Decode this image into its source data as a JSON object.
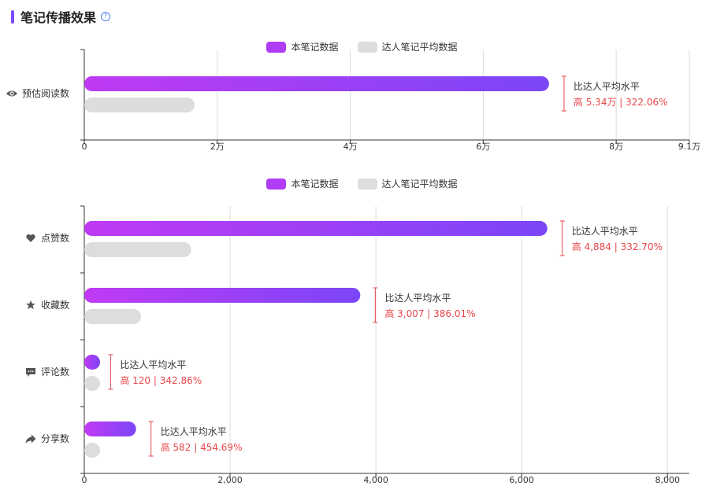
{
  "section": {
    "title": "笔记传播效果",
    "help_icon": "question-circle-icon"
  },
  "legend_labels": {
    "note": "本笔记数据",
    "avg": "达人笔记平均数据"
  },
  "colors": {
    "note_start": "#c03af5",
    "note_end": "#7b46f6",
    "avg": "#dddddd",
    "accent": "#7c4dff",
    "annotation": "#e8464a"
  },
  "chart_data": [
    {
      "type": "bar",
      "orientation": "horizontal",
      "series": [
        {
          "name": "本笔记数据",
          "values": [
            69900
          ]
        },
        {
          "name": "达人笔记平均数据",
          "values": [
            16600
          ]
        }
      ],
      "categories": [
        "预估阅读数"
      ],
      "category_icons": [
        "eye-icon"
      ],
      "xlim": [
        0,
        91000
      ],
      "ticks": [
        0,
        20000,
        40000,
        60000,
        80000,
        91000
      ],
      "tick_labels": [
        "0",
        "2万",
        "4万",
        "6万",
        "8万",
        "9.1万"
      ],
      "grid": true,
      "legend": "top-center",
      "annotations": [
        {
          "title": "比达人平均水平",
          "value": "高 5.34万 | 322.06%"
        }
      ]
    },
    {
      "type": "bar",
      "orientation": "horizontal",
      "series": [
        {
          "name": "本笔记数据",
          "values": [
            6352,
            3786,
            155,
            710
          ]
        },
        {
          "name": "达人笔记平均数据",
          "values": [
            1468,
            779,
            35,
            128
          ]
        }
      ],
      "categories": [
        "点赞数",
        "收藏数",
        "评论数",
        "分享数"
      ],
      "category_icons": [
        "heart-icon",
        "star-icon",
        "comment-icon",
        "share-icon"
      ],
      "xlim": [
        0,
        8300
      ],
      "ticks": [
        0,
        2000,
        4000,
        6000,
        8000
      ],
      "tick_labels": [
        "0",
        "2,000",
        "4,000",
        "6,000",
        "8,000"
      ],
      "grid": true,
      "legend": "top-center",
      "annotations": [
        {
          "title": "比达人平均水平",
          "value": "高 4,884 | 332.70%"
        },
        {
          "title": "比达人平均水平",
          "value": "高 3,007 | 386.01%"
        },
        {
          "title": "比达人平均水平",
          "value": "高 120 | 342.86%"
        },
        {
          "title": "比达人平均水平",
          "value": "高 582 | 454.69%"
        }
      ]
    }
  ]
}
